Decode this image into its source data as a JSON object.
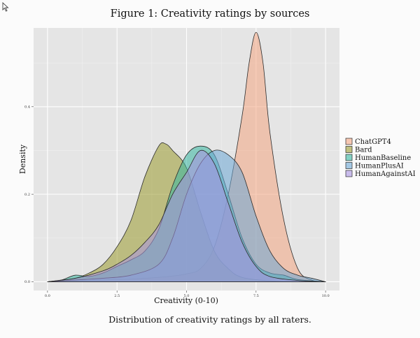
{
  "figure": {
    "title": "Figure 1: Creativity ratings by sources",
    "caption": "Distribution of creativity ratings by all raters."
  },
  "chart_data": {
    "type": "area",
    "subtype": "density",
    "title": "Figure 1: Creativity ratings by sources",
    "xlabel": "Creativity (0-10)",
    "ylabel": "Density",
    "xlim": [
      -0.5,
      10.5
    ],
    "ylim": [
      -0.02,
      0.58
    ],
    "xticks": [
      0,
      2.5,
      5,
      7.5,
      10
    ],
    "xtick_labels": [
      "0.0",
      "2.5",
      "5.0",
      "7.5",
      "10.0"
    ],
    "yticks": [
      0,
      0.2,
      0.4
    ],
    "ytick_labels": [
      "0.0",
      "0.2",
      "0.4"
    ],
    "grid": true,
    "legend_position": "right",
    "series": [
      {
        "name": "ChatGPT4",
        "color": "#f4a582",
        "points": [
          [
            0,
            0
          ],
          [
            1,
            0.002
          ],
          [
            2,
            0.004
          ],
          [
            3,
            0.006
          ],
          [
            4,
            0.01
          ],
          [
            4.5,
            0.013
          ],
          [
            5,
            0.018
          ],
          [
            5.5,
            0.03
          ],
          [
            6,
            0.08
          ],
          [
            6.5,
            0.2
          ],
          [
            7,
            0.38
          ],
          [
            7.25,
            0.5
          ],
          [
            7.5,
            0.57
          ],
          [
            7.75,
            0.5
          ],
          [
            8,
            0.34
          ],
          [
            8.5,
            0.14
          ],
          [
            9,
            0.03
          ],
          [
            9.5,
            0.004
          ],
          [
            10,
            0
          ]
        ]
      },
      {
        "name": "Bard",
        "color": "#9a9a2e",
        "points": [
          [
            0,
            0
          ],
          [
            0.5,
            0.004
          ],
          [
            1,
            0.008
          ],
          [
            1.5,
            0.02
          ],
          [
            2,
            0.04
          ],
          [
            2.5,
            0.08
          ],
          [
            3,
            0.14
          ],
          [
            3.5,
            0.24
          ],
          [
            4,
            0.31
          ],
          [
            4.25,
            0.315
          ],
          [
            4.5,
            0.3
          ],
          [
            5,
            0.26
          ],
          [
            5.5,
            0.16
          ],
          [
            6,
            0.07
          ],
          [
            6.5,
            0.03
          ],
          [
            7,
            0.01
          ],
          [
            8,
            0.002
          ],
          [
            9,
            0
          ],
          [
            10,
            0
          ]
        ]
      },
      {
        "name": "HumanBaseline",
        "color": "#35b6a0",
        "points": [
          [
            0,
            0
          ],
          [
            0.5,
            0.004
          ],
          [
            1,
            0.015
          ],
          [
            1.5,
            0.012
          ],
          [
            2,
            0.02
          ],
          [
            2.5,
            0.035
          ],
          [
            3,
            0.05
          ],
          [
            3.5,
            0.07
          ],
          [
            4,
            0.12
          ],
          [
            4.5,
            0.22
          ],
          [
            5,
            0.29
          ],
          [
            5.5,
            0.31
          ],
          [
            6,
            0.29
          ],
          [
            6.5,
            0.2
          ],
          [
            7,
            0.1
          ],
          [
            7.5,
            0.04
          ],
          [
            8,
            0.02
          ],
          [
            8.5,
            0.015
          ],
          [
            9,
            0.005
          ],
          [
            10,
            0
          ]
        ]
      },
      {
        "name": "HumanPlusAI",
        "color": "#6ba7d6",
        "points": [
          [
            0,
            0
          ],
          [
            1,
            0.004
          ],
          [
            2,
            0.008
          ],
          [
            3,
            0.015
          ],
          [
            4,
            0.04
          ],
          [
            4.5,
            0.1
          ],
          [
            5,
            0.2
          ],
          [
            5.5,
            0.27
          ],
          [
            6,
            0.3
          ],
          [
            6.5,
            0.29
          ],
          [
            7,
            0.25
          ],
          [
            7.5,
            0.15
          ],
          [
            8,
            0.07
          ],
          [
            8.5,
            0.03
          ],
          [
            9,
            0.015
          ],
          [
            9.5,
            0.008
          ],
          [
            10,
            0
          ]
        ]
      },
      {
        "name": "HumanAgainstAI",
        "color": "#a993e2",
        "points": [
          [
            0,
            0
          ],
          [
            1,
            0.008
          ],
          [
            2,
            0.025
          ],
          [
            2.5,
            0.04
          ],
          [
            3,
            0.06
          ],
          [
            3.5,
            0.09
          ],
          [
            4,
            0.13
          ],
          [
            4.5,
            0.2
          ],
          [
            5,
            0.25
          ],
          [
            5.5,
            0.3
          ],
          [
            6,
            0.27
          ],
          [
            6.5,
            0.18
          ],
          [
            7,
            0.09
          ],
          [
            7.5,
            0.035
          ],
          [
            8,
            0.012
          ],
          [
            9,
            0.003
          ],
          [
            10,
            0
          ]
        ]
      }
    ]
  }
}
